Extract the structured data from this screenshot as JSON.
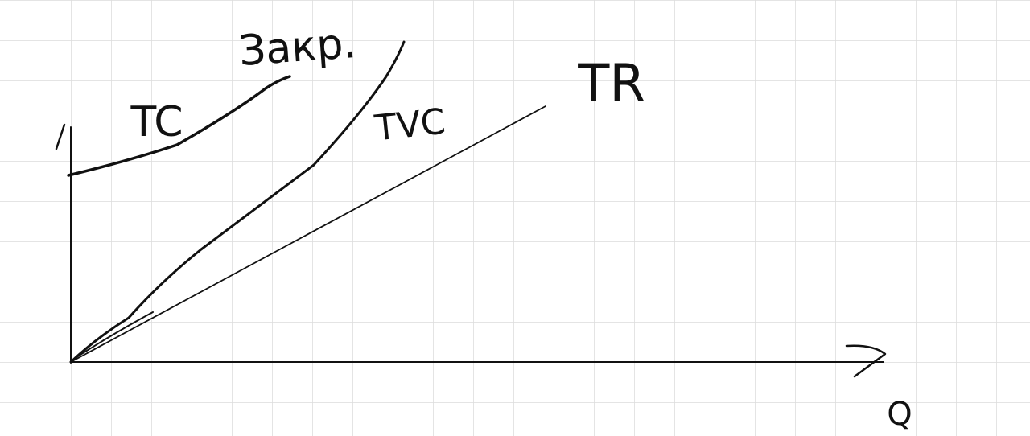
{
  "annotation": "Закр.",
  "curves": [
    {
      "label": "TC"
    },
    {
      "label": "TVC"
    },
    {
      "label": "TR"
    }
  ],
  "x_axis": {
    "label": "Q"
  }
}
